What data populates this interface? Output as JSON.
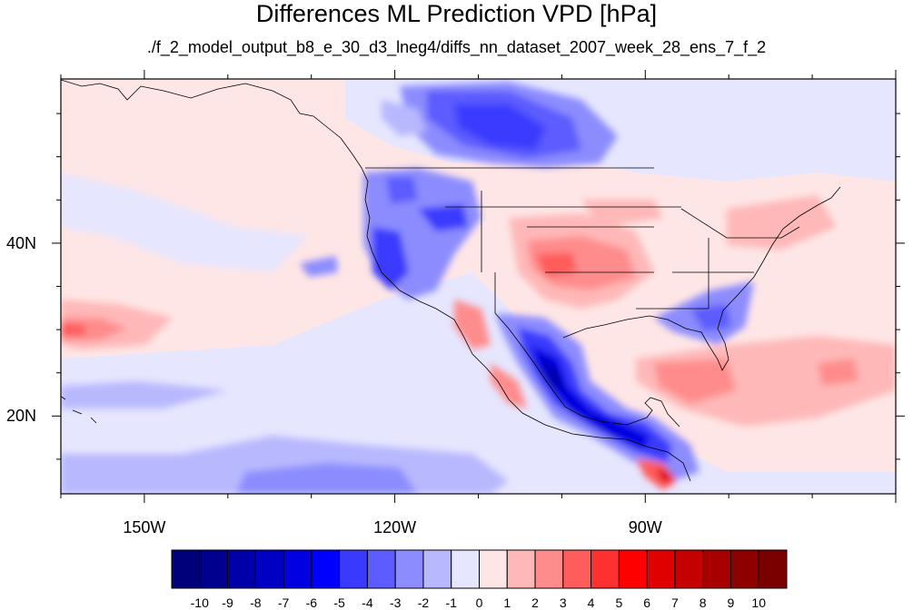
{
  "title": "Differences ML Prediction VPD [hPa]",
  "subtitle": "./f_2_model_output_b8_e_30_d3_lneg4/diffs_nn_dataset_2007_week_28_ens_7_f_2",
  "map": {
    "lon_range": [
      -160,
      -60
    ],
    "lat_range": [
      11,
      59
    ],
    "lon_tick_labels": [
      {
        "lon": -150,
        "label": "150W"
      },
      {
        "lon": -120,
        "label": "120W"
      },
      {
        "lon": -90,
        "label": "90W"
      }
    ],
    "lat_tick_labels": [
      {
        "lat": 40,
        "label": "40N"
      },
      {
        "lat": 20,
        "label": "20N"
      }
    ]
  },
  "colorbar": {
    "labels": [
      "-10",
      "-9",
      "-8",
      "-7",
      "-6",
      "-5",
      "-4",
      "-3",
      "-2",
      "-1",
      "0",
      "1",
      "2",
      "3",
      "4",
      "5",
      "6",
      "7",
      "8",
      "9",
      "10"
    ],
    "colors": [
      "#00007a",
      "#00008e",
      "#0000a8",
      "#0000c4",
      "#0000e0",
      "#0000ff",
      "#3a3aff",
      "#5c5cff",
      "#8c8cff",
      "#b8b8ff",
      "#e6e6ff",
      "#ffe6e6",
      "#ffb8b8",
      "#ff8c8c",
      "#ff5c5c",
      "#ff3030",
      "#ff0000",
      "#e00000",
      "#c40000",
      "#a80000",
      "#8e0000",
      "#7a0000"
    ]
  }
}
